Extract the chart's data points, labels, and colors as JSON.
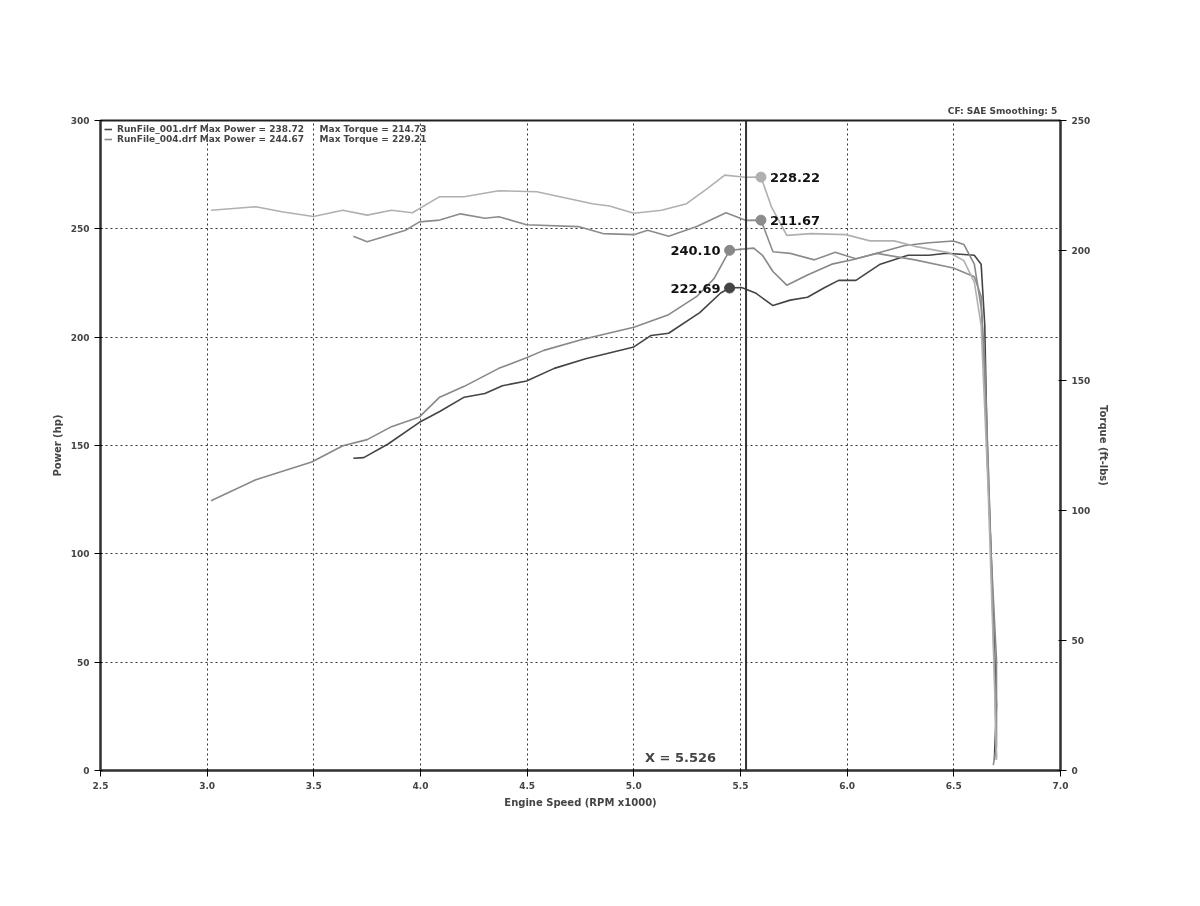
{
  "chart_data": {
    "type": "line",
    "xlabel": "Engine Speed (RPM x1000)",
    "ylabel": "Power (hp)",
    "y2label": "Torque (ft-lbs)",
    "annotations": [
      "CF: SAE  Smoothing: 5"
    ],
    "xlim": [
      2.5,
      7.0
    ],
    "ylim": [
      0,
      300
    ],
    "y2lim": [
      0,
      250
    ],
    "xticks": [
      2.5,
      {
        "value": 3,
        "label": "3.0"
      },
      3.5,
      {
        "value": 4,
        "label": "4.0"
      },
      4.5,
      {
        "value": 5,
        "label": "5.0"
      },
      5.5,
      {
        "value": 6,
        "label": "6.0"
      },
      6.5,
      {
        "value": 7,
        "label": "7.0"
      }
    ],
    "yticks": [
      0,
      50,
      100,
      150,
      200,
      250,
      300
    ],
    "y2ticks": [
      0,
      50,
      100,
      150,
      200,
      250
    ],
    "grid": true,
    "legend": "top left",
    "marker": "none",
    "line_style": "solid",
    "ref_lines": [
      {
        "axis": "x",
        "value": 5.526,
        "label": "X = 5.526",
        "color": "#333333"
      }
    ],
    "series": [
      {
        "name": "RunFile_001.drf Max Power = 238.72     Max Torque = 214.73",
        "color": "#444444",
        "x": [
          3.685,
          3.734,
          3.848,
          3.995,
          4.09,
          4.205,
          4.302,
          4.384,
          4.497,
          4.627,
          4.774,
          5.0,
          5.081,
          5.163,
          5.309,
          5.407,
          5.449,
          5.505,
          5.57,
          5.652,
          5.733,
          5.814,
          5.895,
          5.96,
          6.041,
          6.155,
          6.285,
          6.384,
          6.465,
          6.596,
          6.628,
          6.645,
          6.658,
          6.675,
          6.7,
          6.69
        ],
        "values": [
          144.1,
          144.4,
          150.7,
          160.7,
          165.7,
          172.3,
          174.0,
          177.6,
          179.8,
          185.6,
          190.0,
          195.5,
          200.8,
          201.8,
          211.3,
          220.4,
          222.69,
          222.9,
          220.4,
          214.6,
          217.1,
          218.4,
          222.9,
          226.2,
          226.2,
          233.7,
          237.8,
          237.8,
          238.7,
          237.8,
          233.7,
          205.5,
          140.8,
          99.5,
          30,
          5
        ],
        "value_labels": [
          null,
          null,
          null,
          null,
          null,
          null,
          null,
          null,
          null,
          null,
          null,
          null,
          null,
          null,
          null,
          null,
          "222.69",
          null,
          null,
          null,
          null,
          null,
          null,
          null,
          null,
          null,
          null,
          null,
          null,
          null,
          null,
          null,
          null,
          null,
          null,
          null
        ]
      },
      {
        "name": "RunFile_004.drf Max Power = 244.67     Max Torque = 229.21",
        "color": "#888888",
        "x": [
          3.018,
          3.228,
          3.49,
          3.636,
          3.75,
          3.864,
          3.995,
          4.09,
          4.205,
          4.367,
          4.497,
          4.578,
          4.757,
          5.0,
          5.163,
          5.295,
          5.376,
          5.449,
          5.562,
          5.603,
          5.652,
          5.717,
          5.814,
          5.928,
          6.025,
          6.139,
          6.27,
          6.384,
          6.498,
          6.547,
          6.596,
          6.628,
          6.645,
          6.675,
          6.7,
          6.7,
          6.685
        ],
        "values": [
          124.5,
          134.2,
          142.4,
          149.9,
          152.7,
          158.7,
          163.2,
          172.3,
          177.3,
          185.6,
          190.5,
          193.9,
          198.9,
          204.6,
          210.4,
          218.8,
          227.0,
          240.1,
          241.1,
          237.8,
          230.3,
          224.0,
          228.7,
          233.7,
          235.7,
          238.7,
          242.3,
          243.6,
          244.4,
          242.8,
          233.7,
          213.8,
          188.9,
          99.5,
          51,
          11,
          2.5
        ],
        "value_labels": [
          null,
          null,
          null,
          null,
          null,
          null,
          null,
          null,
          null,
          null,
          null,
          null,
          null,
          null,
          null,
          null,
          null,
          "240.10",
          null,
          null,
          null,
          null,
          null,
          null,
          null,
          null,
          null,
          null,
          null,
          null,
          null,
          null,
          null,
          null,
          null,
          null,
          null
        ]
      },
      {
        "color": "#8c8c8c",
        "axis": "y2",
        "x": [
          3.685,
          3.75,
          3.848,
          3.93,
          3.995,
          4.09,
          4.188,
          4.302,
          4.367,
          4.497,
          4.74,
          4.855,
          5.0,
          5.065,
          5.163,
          5.295,
          5.432,
          5.523,
          5.596,
          5.652,
          5.733,
          5.847,
          5.944,
          6.041,
          6.139,
          6.318,
          6.498,
          6.596,
          6.628,
          6.66,
          6.69,
          6.7
        ],
        "values": [
          205.5,
          203.4,
          205.8,
          207.8,
          211.0,
          211.7,
          214.1,
          212.4,
          213.0,
          209.9,
          209.2,
          206.5,
          206.1,
          207.8,
          205.5,
          209.2,
          214.5,
          211.6,
          211.67,
          199.5,
          198.9,
          196.4,
          199.3,
          196.8,
          198.9,
          196.4,
          193.3,
          189.9,
          182.3,
          120,
          40,
          5
        ],
        "value_labels": [
          null,
          null,
          null,
          null,
          null,
          null,
          null,
          null,
          null,
          null,
          null,
          null,
          null,
          null,
          null,
          null,
          null,
          null,
          "211.67",
          null,
          null,
          null,
          null,
          null,
          null,
          null,
          null,
          null,
          null,
          null,
          null,
          null
        ]
      },
      {
        "color": "#b0b0b0",
        "axis": "y2",
        "x": [
          3.018,
          3.228,
          3.357,
          3.498,
          3.636,
          3.75,
          3.864,
          3.962,
          4.09,
          4.205,
          4.367,
          4.545,
          4.806,
          4.886,
          5.0,
          5.13,
          5.247,
          5.344,
          5.426,
          5.523,
          5.596,
          5.645,
          5.717,
          5.831,
          5.993,
          6.107,
          6.22,
          6.318,
          6.48,
          6.547,
          6.596,
          6.628,
          6.66,
          6.69,
          6.7
        ],
        "values": [
          215.5,
          216.8,
          214.8,
          213.1,
          215.5,
          213.6,
          215.5,
          214.5,
          220.7,
          220.7,
          223.0,
          222.6,
          218.0,
          217.1,
          214.3,
          215.5,
          218.0,
          223.8,
          229.0,
          228.2,
          228.22,
          216.8,
          205.8,
          206.5,
          206.1,
          203.7,
          203.7,
          201.6,
          199.1,
          196.1,
          187.8,
          171.2,
          110,
          35,
          4
        ],
        "value_labels": [
          null,
          null,
          null,
          null,
          null,
          null,
          null,
          null,
          null,
          null,
          null,
          null,
          null,
          null,
          null,
          null,
          null,
          null,
          null,
          null,
          "228.22",
          null,
          null,
          null,
          null,
          null,
          null,
          null,
          null,
          null,
          null,
          null,
          null,
          null,
          null
        ]
      }
    ]
  }
}
